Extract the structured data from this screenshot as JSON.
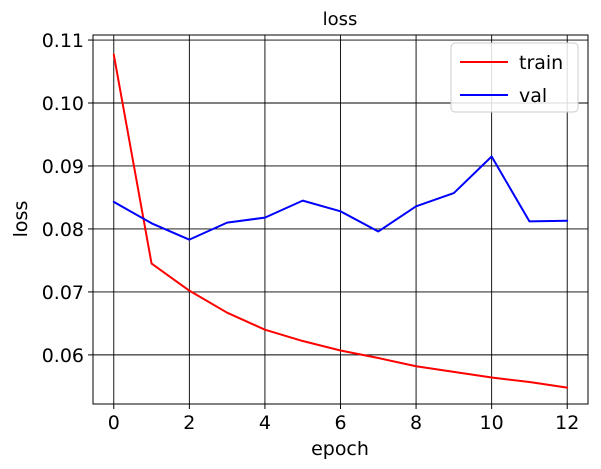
{
  "chart_data": {
    "type": "line",
    "title": "loss",
    "xlabel": "epoch",
    "ylabel": "loss",
    "xlim": [
      -0.55,
      12.55
    ],
    "ylim": [
      0.0522,
      0.1108
    ],
    "x_ticks": [
      0,
      2,
      4,
      6,
      8,
      10,
      12
    ],
    "x_tick_labels": [
      "0",
      "2",
      "4",
      "6",
      "8",
      "10",
      "12"
    ],
    "y_ticks": [
      0.06,
      0.07,
      0.08,
      0.09,
      0.1,
      0.11
    ],
    "y_tick_labels": [
      "0.06",
      "0.07",
      "0.08",
      "0.09",
      "0.10",
      "0.11"
    ],
    "grid": true,
    "legend_position": "top-right",
    "x": [
      0,
      1,
      2,
      3,
      4,
      5,
      6,
      7,
      8,
      9,
      10,
      11,
      12
    ],
    "series": [
      {
        "name": "train",
        "color": "#ff0000",
        "values": [
          0.1077,
          0.0745,
          0.0702,
          0.0667,
          0.064,
          0.0622,
          0.0607,
          0.0595,
          0.0582,
          0.0573,
          0.0564,
          0.0557,
          0.0548
        ]
      },
      {
        "name": "val",
        "color": "#0000ff",
        "values": [
          0.0843,
          0.0809,
          0.0783,
          0.081,
          0.0818,
          0.0845,
          0.0828,
          0.0796,
          0.0836,
          0.0857,
          0.0915,
          0.0812,
          0.0813
        ]
      }
    ]
  }
}
